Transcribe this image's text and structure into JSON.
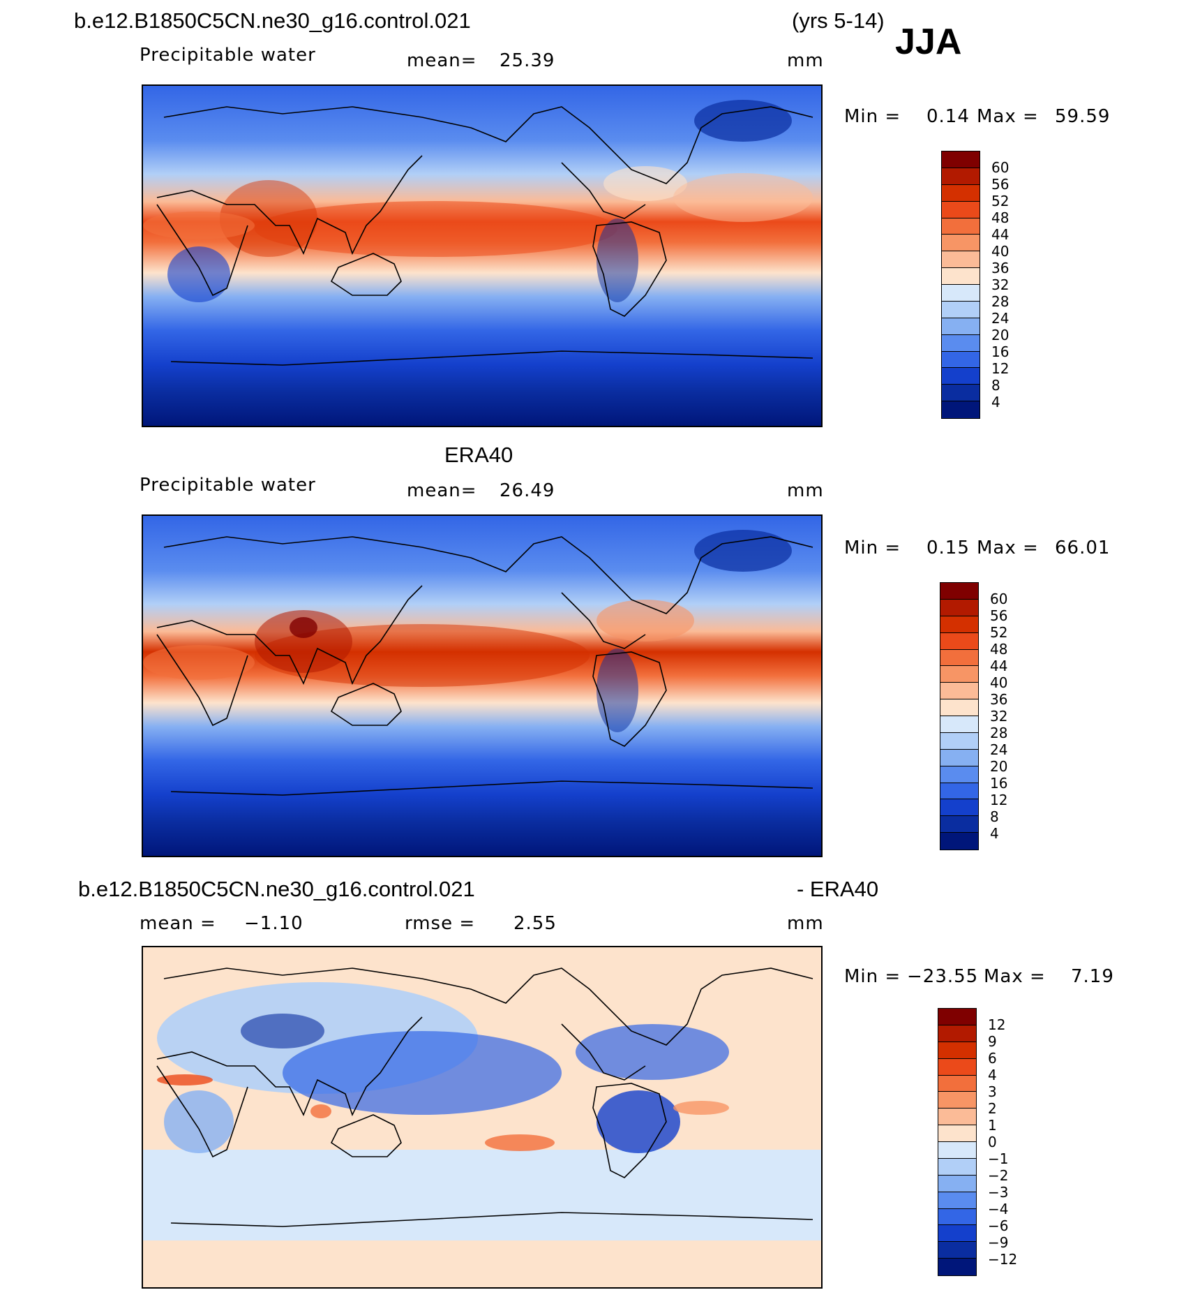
{
  "header": {
    "run_name": "b.e12.B1850C5CN.ne30_g16.control.021",
    "years": "(yrs 5-14)",
    "season": "JJA"
  },
  "panel1": {
    "variable": "Precipitable water",
    "mean_label": "mean=",
    "mean_value": "25.39",
    "units": "mm",
    "min_label": "Min =",
    "min_value": "0.14",
    "max_label": "Max =",
    "max_value": "59.59"
  },
  "panel2": {
    "title": "ERA40",
    "variable": "Precipitable water",
    "mean_label": "mean=",
    "mean_value": "26.49",
    "units": "mm",
    "min_label": "Min =",
    "min_value": "0.15",
    "max_label": "Max =",
    "max_value": "66.01"
  },
  "panel3": {
    "title_left": "b.e12.B1850C5CN.ne30_g16.control.021",
    "title_right": "- ERA40",
    "mean_label": "mean =",
    "mean_value": "−1.10",
    "rmse_label": "rmse =",
    "rmse_value": "2.55",
    "units": "mm",
    "min_label": "Min =",
    "min_value": "−23.55",
    "max_label": "Max =",
    "max_value": "7.19"
  },
  "colorbar_abs": {
    "labels": [
      "60",
      "56",
      "52",
      "48",
      "44",
      "40",
      "36",
      "32",
      "28",
      "24",
      "20",
      "16",
      "12",
      "8",
      "4"
    ],
    "colors": [
      "#7f0000",
      "#b21a00",
      "#d43000",
      "#eb4a1a",
      "#f26f3c",
      "#f79565",
      "#fbbb97",
      "#fde3cc",
      "#d7e8fa",
      "#b1cff7",
      "#86b0f2",
      "#5a8cef",
      "#3366e6",
      "#1440cc",
      "#0a2da0",
      "#00167a"
    ]
  },
  "colorbar_diff": {
    "labels": [
      "12",
      "9",
      "6",
      "4",
      "3",
      "2",
      "1",
      "0",
      "−1",
      "−2",
      "−3",
      "−4",
      "−6",
      "−9",
      "−12"
    ],
    "colors": [
      "#7f0000",
      "#b21a00",
      "#d43000",
      "#eb4a1a",
      "#f26f3c",
      "#f79565",
      "#fbbb97",
      "#fde3cc",
      "#d7e8fa",
      "#b1cff7",
      "#86b0f2",
      "#5a8cef",
      "#3366e6",
      "#1440cc",
      "#0a2da0",
      "#00167a"
    ]
  }
}
